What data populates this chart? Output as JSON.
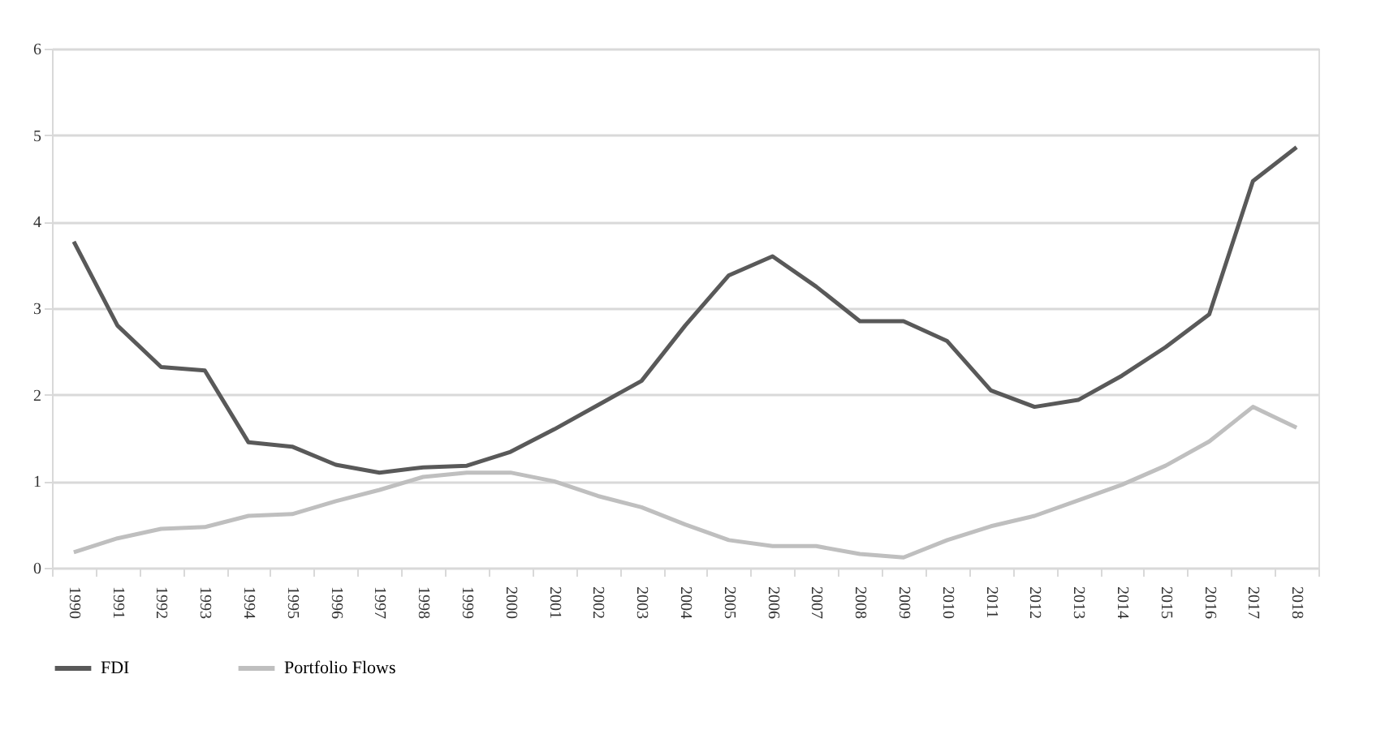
{
  "chart_data": {
    "type": "line",
    "categories": [
      "1990",
      "1991",
      "1992",
      "1993",
      "1994",
      "1995",
      "1996",
      "1997",
      "1998",
      "1999",
      "2000",
      "2001",
      "2002",
      "2003",
      "2004",
      "2005",
      "2006",
      "2007",
      "2008",
      "2009",
      "2010",
      "2011",
      "2012",
      "2013",
      "2014",
      "2015",
      "2016",
      "2017",
      "2018"
    ],
    "series": [
      {
        "name": "FDI",
        "color": "#595959",
        "values": [
          3.77,
          2.8,
          2.32,
          2.28,
          1.45,
          1.4,
          1.19,
          1.1,
          1.16,
          1.18,
          1.34,
          1.6,
          1.88,
          2.16,
          2.8,
          3.38,
          3.6,
          3.25,
          2.85,
          2.85,
          2.62,
          2.05,
          1.86,
          1.94,
          2.22,
          2.55,
          2.93,
          4.47,
          4.86
        ]
      },
      {
        "name": "Portfolio Flows",
        "color": "#bfbfbf",
        "values": [
          0.18,
          0.34,
          0.45,
          0.47,
          0.6,
          0.62,
          0.77,
          0.9,
          1.05,
          1.1,
          1.1,
          1.0,
          0.83,
          0.7,
          0.5,
          0.32,
          0.25,
          0.25,
          0.16,
          0.12,
          0.32,
          0.48,
          0.6,
          0.78,
          0.96,
          1.18,
          1.46,
          1.86,
          1.62
        ]
      }
    ],
    "ylim": [
      0,
      6
    ],
    "yticks": [
      0,
      1,
      2,
      3,
      4,
      5,
      6
    ],
    "grid": "y",
    "legend": "bottom",
    "marker": "none",
    "line_style": "solid"
  }
}
